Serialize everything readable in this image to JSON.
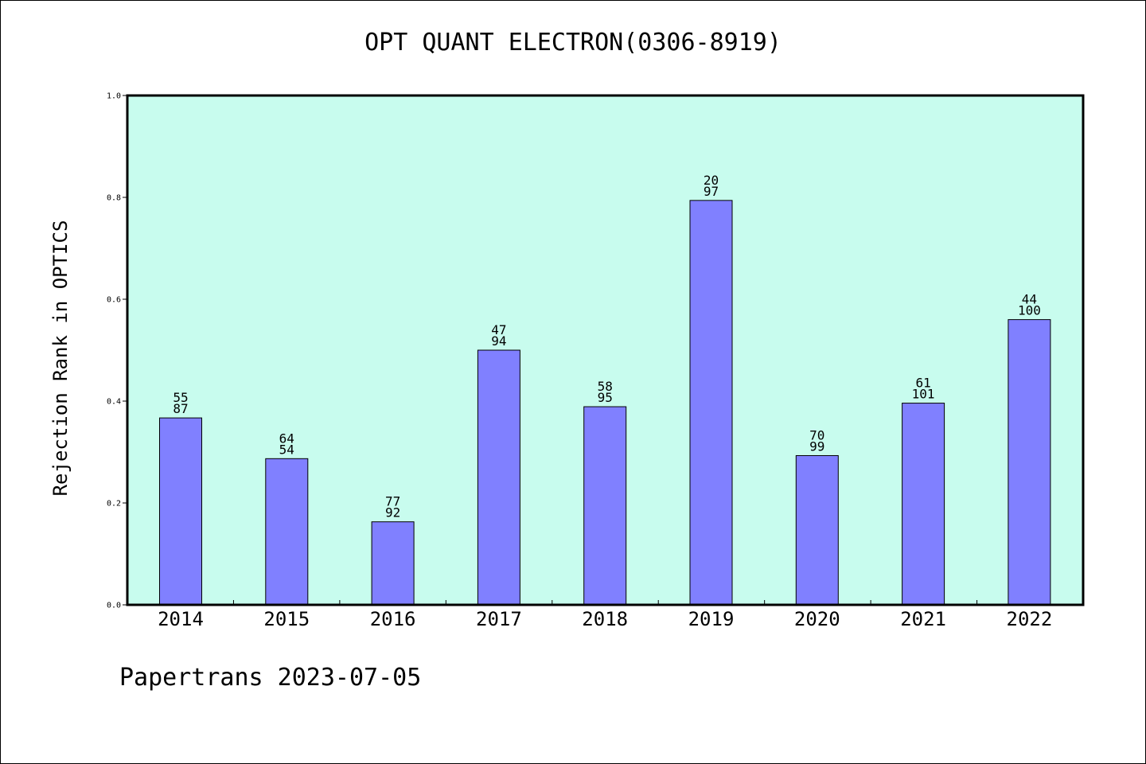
{
  "chart_data": {
    "type": "bar",
    "title": "OPT QUANT ELECTRON(0306-8919)",
    "xlabel": "",
    "ylabel": "Rejection Rank in OPTICS",
    "ylim": [
      0,
      1.0
    ],
    "yticks": [
      "0.0",
      "0.2",
      "0.4",
      "0.6",
      "0.8",
      "1.0"
    ],
    "categories": [
      "2014",
      "2015",
      "2016",
      "2017",
      "2018",
      "2019",
      "2020",
      "2021",
      "2022"
    ],
    "values": [
      0.367,
      0.287,
      0.163,
      0.5,
      0.389,
      0.794,
      0.293,
      0.396,
      0.56
    ],
    "labels_top": [
      "55",
      "64",
      "77",
      "47",
      "58",
      "20",
      "70",
      "61",
      "44"
    ],
    "labels_bottom": [
      "87",
      "54",
      "92",
      "94",
      "95",
      "97",
      "99",
      "101",
      "100"
    ],
    "grid": false,
    "colors": {
      "plot_bg": "#c8fcee",
      "bar": "#8080ff"
    }
  },
  "footer": "Papertrans 2023-07-05"
}
